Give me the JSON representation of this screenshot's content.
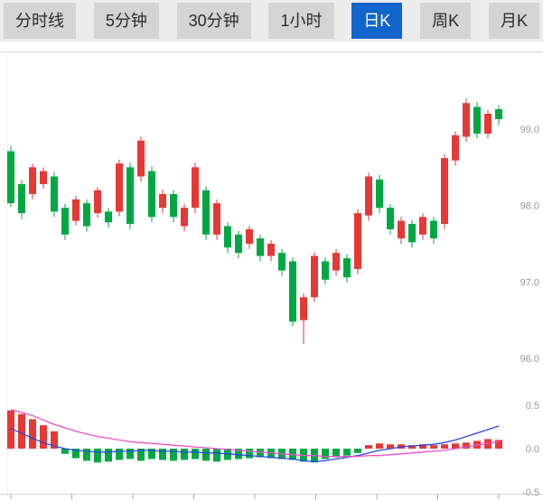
{
  "tabbar": {
    "active_index": 4,
    "tabs": [
      {
        "id": "minute-line",
        "label": "分时线"
      },
      {
        "id": "5min",
        "label": "5分钟"
      },
      {
        "id": "30min",
        "label": "30分钟"
      },
      {
        "id": "1hour",
        "label": "1小时"
      },
      {
        "id": "daily-k",
        "label": "日K"
      },
      {
        "id": "weekly-k",
        "label": "周K"
      },
      {
        "id": "monthly-k",
        "label": "月K"
      }
    ]
  },
  "colors": {
    "accent": "#1165cb",
    "up": "#e53935",
    "down": "#00a843",
    "dif_line": "#2948d8",
    "dea_line": "#ef4fc8",
    "axis_text": "#999999",
    "frame": "#d9d9d9"
  },
  "chart_data": {
    "type": "candlestick",
    "title": "",
    "legend_position": "none",
    "grid": false,
    "main": {
      "ohlc_order": "open,high,low,close",
      "ylim": [
        95.9,
        100.0
      ],
      "yticks": [
        {
          "value": 99.0,
          "label": "99.0"
        },
        {
          "value": 98.0,
          "label": "98.0"
        },
        {
          "value": 97.0,
          "label": "97.0"
        },
        {
          "value": 96.0,
          "label": "96.0"
        }
      ],
      "candles": [
        [
          98.71,
          98.78,
          97.98,
          98.03
        ],
        [
          98.28,
          98.33,
          97.82,
          97.9
        ],
        [
          98.15,
          98.55,
          98.08,
          98.5
        ],
        [
          98.28,
          98.5,
          98.22,
          98.45
        ],
        [
          98.38,
          98.44,
          97.85,
          97.92
        ],
        [
          97.97,
          98.02,
          97.55,
          97.62
        ],
        [
          97.8,
          98.13,
          97.74,
          98.08
        ],
        [
          98.03,
          98.08,
          97.66,
          97.73
        ],
        [
          97.9,
          98.24,
          97.84,
          98.2
        ],
        [
          97.92,
          97.97,
          97.71,
          97.78
        ],
        [
          97.92,
          98.6,
          97.86,
          98.55
        ],
        [
          98.5,
          98.56,
          97.69,
          97.76
        ],
        [
          98.38,
          98.9,
          98.31,
          98.85
        ],
        [
          98.45,
          98.51,
          97.78,
          97.85
        ],
        [
          97.97,
          98.21,
          97.9,
          98.15
        ],
        [
          98.15,
          98.2,
          97.78,
          97.85
        ],
        [
          97.73,
          98.02,
          97.66,
          97.97
        ],
        [
          97.97,
          98.56,
          97.9,
          98.5
        ],
        [
          98.2,
          98.25,
          97.55,
          97.62
        ],
        [
          97.62,
          98.08,
          97.55,
          98.03
        ],
        [
          97.73,
          97.78,
          97.38,
          97.45
        ],
        [
          97.62,
          97.67,
          97.31,
          97.38
        ],
        [
          97.5,
          97.74,
          97.43,
          97.69
        ],
        [
          97.57,
          97.62,
          97.27,
          97.34
        ],
        [
          97.34,
          97.55,
          97.27,
          97.5
        ],
        [
          97.38,
          97.43,
          97.08,
          97.15
        ],
        [
          97.27,
          97.32,
          96.42,
          96.48
        ],
        [
          96.5,
          96.85,
          96.19,
          96.8
        ],
        [
          96.8,
          97.39,
          96.74,
          97.34
        ],
        [
          97.27,
          97.32,
          96.97,
          97.03
        ],
        [
          97.15,
          97.43,
          97.08,
          97.38
        ],
        [
          97.31,
          97.36,
          96.99,
          97.06
        ],
        [
          97.17,
          97.95,
          97.1,
          97.9
        ],
        [
          97.87,
          98.43,
          97.8,
          98.38
        ],
        [
          98.34,
          98.4,
          97.9,
          97.97
        ],
        [
          97.97,
          98.02,
          97.62,
          97.69
        ],
        [
          97.57,
          97.85,
          97.5,
          97.8
        ],
        [
          97.76,
          97.81,
          97.45,
          97.52
        ],
        [
          97.62,
          97.9,
          97.55,
          97.85
        ],
        [
          97.8,
          97.85,
          97.5,
          97.57
        ],
        [
          97.76,
          98.67,
          97.69,
          98.62
        ],
        [
          98.59,
          98.97,
          98.52,
          98.92
        ],
        [
          98.9,
          99.4,
          98.83,
          99.34
        ],
        [
          99.29,
          99.35,
          98.88,
          98.94
        ],
        [
          98.94,
          99.25,
          98.88,
          99.2
        ],
        [
          99.26,
          99.31,
          99.05,
          99.13
        ]
      ]
    },
    "sub": {
      "indicator": "MACD",
      "ylim": [
        -0.5,
        0.5
      ],
      "yticks": [
        {
          "value": 0.5,
          "label": "0.5"
        },
        {
          "value": 0.0,
          "label": "0.0"
        },
        {
          "value": -0.5,
          "label": "-0.5"
        }
      ],
      "histogram": [
        0.44,
        0.4,
        0.34,
        0.27,
        0.2,
        -0.06,
        -0.11,
        -0.14,
        -0.16,
        -0.15,
        -0.13,
        -0.12,
        -0.14,
        -0.12,
        -0.13,
        -0.14,
        -0.13,
        -0.12,
        -0.14,
        -0.15,
        -0.13,
        -0.12,
        -0.11,
        -0.1,
        -0.11,
        -0.12,
        -0.13,
        -0.15,
        -0.16,
        -0.12,
        -0.1,
        -0.08,
        -0.05,
        0.04,
        0.06,
        0.05,
        0.05,
        0.04,
        0.05,
        0.04,
        0.05,
        0.06,
        0.07,
        0.09,
        0.11,
        0.1
      ],
      "dif": [
        0.23,
        0.18,
        0.12,
        0.07,
        0.03,
        0.0,
        -0.02,
        -0.03,
        -0.04,
        -0.04,
        -0.03,
        -0.03,
        -0.02,
        -0.02,
        -0.03,
        -0.03,
        -0.04,
        -0.04,
        -0.05,
        -0.05,
        -0.06,
        -0.07,
        -0.08,
        -0.09,
        -0.1,
        -0.11,
        -0.12,
        -0.14,
        -0.15,
        -0.14,
        -0.12,
        -0.1,
        -0.08,
        -0.05,
        -0.02,
        0.0,
        0.02,
        0.03,
        0.04,
        0.05,
        0.07,
        0.1,
        0.14,
        0.18,
        0.22,
        0.26
      ],
      "dea": [
        0.45,
        0.42,
        0.38,
        0.33,
        0.28,
        0.24,
        0.2,
        0.17,
        0.14,
        0.12,
        0.1,
        0.08,
        0.07,
        0.06,
        0.05,
        0.04,
        0.03,
        0.02,
        0.01,
        0.0,
        -0.01,
        -0.02,
        -0.03,
        -0.04,
        -0.05,
        -0.06,
        -0.07,
        -0.08,
        -0.08,
        -0.09,
        -0.09,
        -0.09,
        -0.09,
        -0.08,
        -0.08,
        -0.07,
        -0.06,
        -0.05,
        -0.04,
        -0.03,
        -0.02,
        0.0,
        0.02,
        0.04,
        0.06,
        0.08
      ]
    }
  }
}
